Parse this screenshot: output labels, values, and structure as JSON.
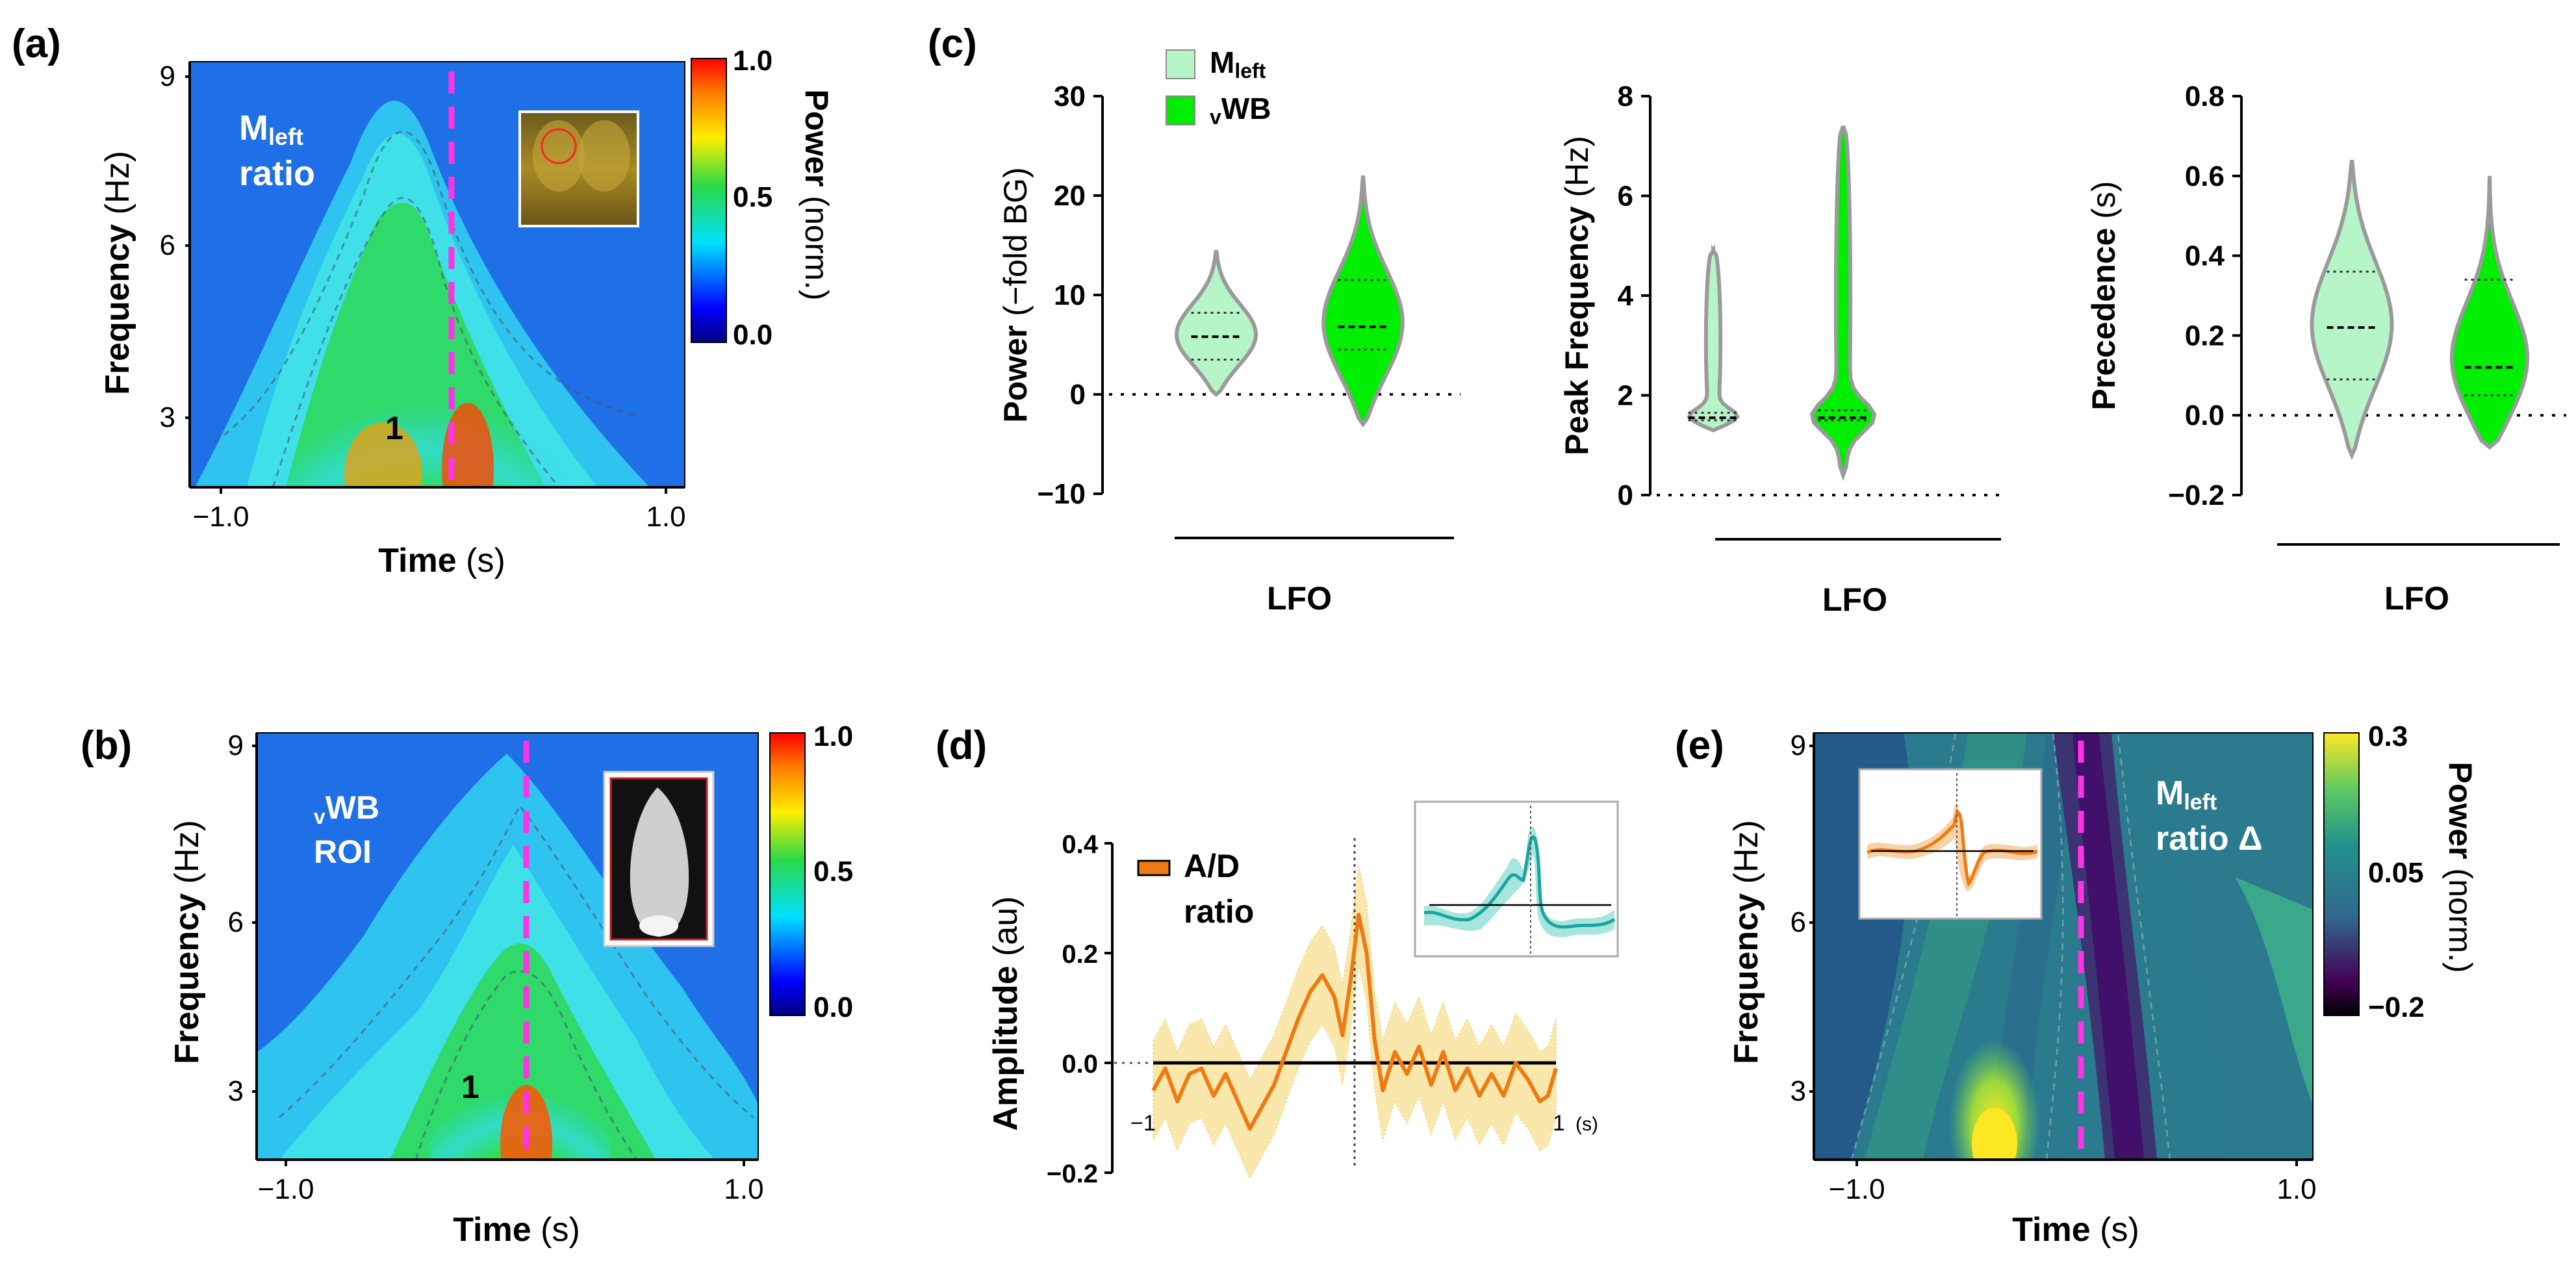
{
  "panels": {
    "a": {
      "letter": "(a)",
      "y_label": "Frequency",
      "y_unit": "(Hz)",
      "x_label": "Time",
      "x_unit": "(s)",
      "y_ticks": [
        "3",
        "6",
        "9"
      ],
      "x_ticks": [
        "−1.0",
        "1.0"
      ],
      "overlay_main": "M",
      "overlay_sub": "left",
      "overlay_line2": "ratio",
      "peak_label": "1",
      "colorbar_ticks": [
        "1.0",
        "0.5",
        "0.0"
      ],
      "colorbar_label": "Power",
      "colorbar_unit": "(norm.)"
    },
    "b": {
      "letter": "(b)",
      "y_label": "Frequency",
      "y_unit": "(Hz)",
      "x_label": "Time",
      "x_unit": "(s)",
      "y_ticks": [
        "3",
        "6",
        "9"
      ],
      "x_ticks": [
        "−1.0",
        "1.0"
      ],
      "overlay_sub": "v",
      "overlay_main": "WB",
      "overlay_line2": "ROI",
      "peak_label": "1",
      "colorbar_ticks": [
        "1.0",
        "0.5",
        "0.0"
      ]
    },
    "c": {
      "letter": "(c)"
    },
    "d": {
      "letter": "(d)"
    },
    "e": {
      "letter": "(e)",
      "y_label": "Frequency",
      "y_unit": "(Hz)",
      "x_label": "Time",
      "x_unit": "(s)",
      "y_ticks": [
        "3",
        "6",
        "9"
      ],
      "x_ticks": [
        "−1.0",
        "1.0"
      ],
      "overlay_main": "M",
      "overlay_sub": "left",
      "overlay_line2": "ratio Δ",
      "colorbar_ticks": [
        "0.3",
        "0.05",
        "−0.2"
      ],
      "colorbar_label": "Power",
      "colorbar_unit": "(norm.)"
    }
  },
  "colors": {
    "mleft": "#b6f5c8",
    "vwb": "#00ee00",
    "violin_edge": "#9a9a9a",
    "orange": "#f07a12",
    "teal": "#1aa6a0",
    "magenta": "#ff33e6"
  },
  "chart_data": [
    {
      "panel": "c1",
      "type": "violin",
      "ylabel": "Power",
      "ylabel_unit": "(−fold BG)",
      "ylim": [
        -10,
        30
      ],
      "yticks": [
        -10,
        0,
        10,
        20,
        30
      ],
      "group_label": "LFO",
      "legend_position": "top-left",
      "series": [
        {
          "name": "M",
          "name_sub": "left",
          "min": 0,
          "max": 14.5,
          "q1": 3.5,
          "median": 5.8,
          "q3": 8.2
        },
        {
          "name": "WB",
          "name_sub": "v",
          "min": -3,
          "max": 22,
          "q1": 4.5,
          "median": 6.8,
          "q3": 11.5
        }
      ]
    },
    {
      "panel": "c2",
      "type": "violin",
      "ylabel": "Peak Frequency",
      "ylabel_unit": "(Hz)",
      "ylim": [
        0,
        8
      ],
      "yticks": [
        0,
        2,
        4,
        6,
        8
      ],
      "group_label": "LFO",
      "series": [
        {
          "name": "M",
          "name_sub": "left",
          "min": 1.3,
          "max": 4.9,
          "q1": 1.5,
          "median": 1.55,
          "q3": 1.65
        },
        {
          "name": "WB",
          "name_sub": "v",
          "min": 0.4,
          "max": 7.4,
          "q1": 1.5,
          "median": 1.55,
          "q3": 1.7
        }
      ]
    },
    {
      "panel": "c3",
      "type": "violin",
      "ylabel": "Precedence",
      "ylabel_unit": "(s)",
      "ylim": [
        -0.2,
        0.8
      ],
      "yticks": [
        -0.2,
        0.0,
        0.2,
        0.4,
        0.6,
        0.8
      ],
      "group_label": "LFO",
      "series": [
        {
          "name": "M",
          "name_sub": "left",
          "min": -0.1,
          "max": 0.64,
          "q1": 0.09,
          "median": 0.22,
          "q3": 0.36
        },
        {
          "name": "WB",
          "name_sub": "v",
          "min": -0.08,
          "max": 0.6,
          "q1": 0.05,
          "median": 0.12,
          "q3": 0.34
        }
      ]
    },
    {
      "panel": "d",
      "type": "line",
      "ylabel": "Amplitude",
      "ylabel_unit": "(au)",
      "xlim": [
        -1,
        1
      ],
      "ylim": [
        -0.2,
        0.4
      ],
      "yticks": [
        -0.2,
        0.0,
        0.2,
        0.4
      ],
      "ytick_labels": [
        "−0.2",
        "0.0",
        "0.2",
        "0.4"
      ],
      "x_endpoint_labels": [
        "−1",
        "1"
      ],
      "x_unit": "(s)",
      "legend": "A/D",
      "legend_line2": "ratio",
      "series": [
        {
          "name": "A/D ratio",
          "x": [
            -1.0,
            -0.94,
            -0.88,
            -0.82,
            -0.76,
            -0.7,
            -0.64,
            -0.58,
            -0.52,
            -0.46,
            -0.4,
            -0.34,
            -0.28,
            -0.22,
            -0.16,
            -0.1,
            -0.06,
            -0.02,
            0.02,
            0.06,
            0.1,
            0.14,
            0.2,
            0.26,
            0.32,
            0.38,
            0.44,
            0.5,
            0.56,
            0.62,
            0.68,
            0.74,
            0.8,
            0.86,
            0.92,
            0.96,
            1.0
          ],
          "y": [
            -0.05,
            -0.01,
            -0.07,
            -0.02,
            -0.01,
            -0.06,
            -0.02,
            -0.07,
            -0.12,
            -0.08,
            -0.04,
            0.02,
            0.08,
            0.13,
            0.16,
            0.12,
            0.05,
            0.15,
            0.27,
            0.2,
            0.04,
            -0.05,
            0.02,
            -0.02,
            0.03,
            -0.04,
            0.02,
            -0.05,
            -0.01,
            -0.06,
            -0.02,
            -0.06,
            0.0,
            -0.03,
            -0.07,
            -0.06,
            -0.01
          ],
          "band": 0.09
        }
      ]
    }
  ]
}
